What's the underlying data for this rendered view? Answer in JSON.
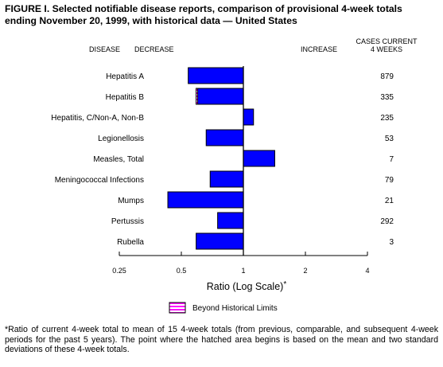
{
  "title_line1": "FIGURE I. Selected notifiable disease reports, comparison of provisional 4-week totals",
  "title_line2": "ending November 20, 1999, with historical data — United States",
  "chart_data": {
    "type": "bar",
    "scale": "log",
    "baseline": 1,
    "header": {
      "disease": "DISEASE",
      "decrease": "DECREASE",
      "increase": "INCREASE",
      "cases_line1": "CASES CURRENT",
      "cases_line2": "4 WEEKS"
    },
    "categories": [
      "Hepatitis A",
      "Hepatitis B",
      "Hepatitis, C/Non-A, Non-B",
      "Legionellosis",
      "Measles, Total",
      "Meningococcal Infections",
      "Mumps",
      "Pertussis",
      "Rubella"
    ],
    "values": [
      0.54,
      0.59,
      1.12,
      0.66,
      1.42,
      0.69,
      0.43,
      0.75,
      0.59
    ],
    "hatched_start": [
      null,
      0.6,
      null,
      null,
      null,
      0.69,
      null,
      null,
      null
    ],
    "cases": [
      "879",
      "335",
      "235",
      "53",
      "7",
      "79",
      "21",
      "292",
      "3"
    ],
    "xlim": [
      0.25,
      4
    ],
    "x_ticks": [
      {
        "value": 0.25,
        "label": "0.25"
      },
      {
        "value": 0.5,
        "label": "0.5"
      },
      {
        "value": 1,
        "label": "1"
      },
      {
        "value": 2,
        "label": "2"
      },
      {
        "value": 4,
        "label": "4"
      }
    ],
    "xlabel": "Ratio (Log Scale)",
    "xlabel_mark": "*",
    "legend": "Beyond Historical Limits",
    "colors": {
      "bar": "#0000ff",
      "hatch": "#ff00ff",
      "outline": "#000000"
    }
  },
  "footnote": "*Ratio of current 4-week total to mean of 15 4-week totals (from previous, comparable, and subsequent 4-week periods for the past 5 years). The point where the hatched area begins is based on the mean and two standard deviations of these 4-week totals."
}
